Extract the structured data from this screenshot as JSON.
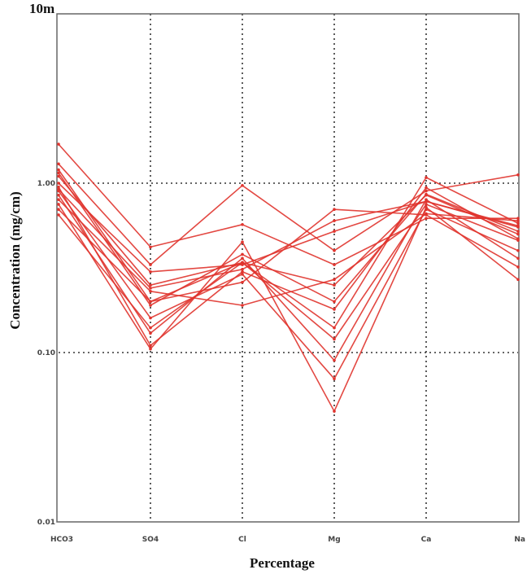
{
  "chart_data": {
    "type": "line",
    "title": "",
    "top_label": "10m",
    "xlabel": "Percentage",
    "ylabel": "Concentration (mg/cm)",
    "yscale": "log",
    "ylim": [
      0.01,
      10
    ],
    "yticks": [
      {
        "value": 1.0,
        "label": "1.00"
      },
      {
        "value": 0.1,
        "label": "0.10"
      },
      {
        "value": 0.01,
        "label": "0.01"
      }
    ],
    "categories": [
      "HCO3",
      "SO4",
      "Cl",
      "Mg",
      "Ca",
      "Na"
    ],
    "grid": true,
    "line_color": "#e0342e",
    "series": [
      {
        "values": [
          1.7,
          0.42,
          0.57,
          0.33,
          0.62,
          0.62
        ]
      },
      {
        "values": [
          1.3,
          0.33,
          0.97,
          0.4,
          0.9,
          1.12
        ]
      },
      {
        "values": [
          1.2,
          0.2,
          0.34,
          0.14,
          1.08,
          0.58
        ]
      },
      {
        "values": [
          1.1,
          0.25,
          0.34,
          0.25,
          0.85,
          0.5
        ]
      },
      {
        "values": [
          1.0,
          0.3,
          0.33,
          0.52,
          0.78,
          0.55
        ]
      },
      {
        "values": [
          0.95,
          0.11,
          0.3,
          0.18,
          0.94,
          0.47
        ]
      },
      {
        "values": [
          0.9,
          0.16,
          0.29,
          0.07,
          0.7,
          0.4
        ]
      },
      {
        "values": [
          0.85,
          0.13,
          0.36,
          0.09,
          0.8,
          0.36
        ]
      },
      {
        "values": [
          0.8,
          0.23,
          0.19,
          0.27,
          0.66,
          0.6
        ]
      },
      {
        "values": [
          0.75,
          0.105,
          0.45,
          0.045,
          0.72,
          0.27
        ]
      },
      {
        "values": [
          0.7,
          0.2,
          0.26,
          0.7,
          0.65,
          0.32
        ]
      },
      {
        "values": [
          0.65,
          0.14,
          0.34,
          0.12,
          0.75,
          0.46
        ]
      },
      {
        "values": [
          1.15,
          0.19,
          0.38,
          0.2,
          0.86,
          0.52
        ]
      },
      {
        "values": [
          0.92,
          0.24,
          0.31,
          0.6,
          0.78,
          0.56
        ]
      }
    ]
  }
}
